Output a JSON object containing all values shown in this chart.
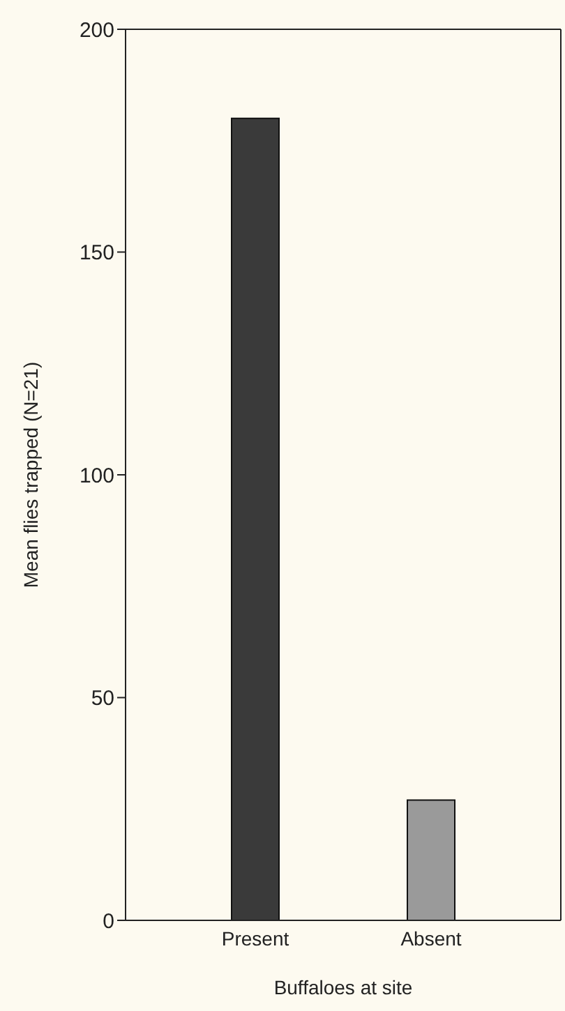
{
  "chart_data": {
    "type": "bar",
    "xlabel": "Buffaloes at site",
    "ylabel": "Mean flies trapped (N=21)",
    "categories": [
      "Present",
      "Absent"
    ],
    "values": [
      180,
      27
    ],
    "colors": [
      "#3a3a3a",
      "#9a9a9a"
    ],
    "ylim": [
      0,
      200
    ],
    "yticks": [
      0,
      50,
      100,
      150,
      200
    ],
    "grid": false,
    "legend": false
  }
}
